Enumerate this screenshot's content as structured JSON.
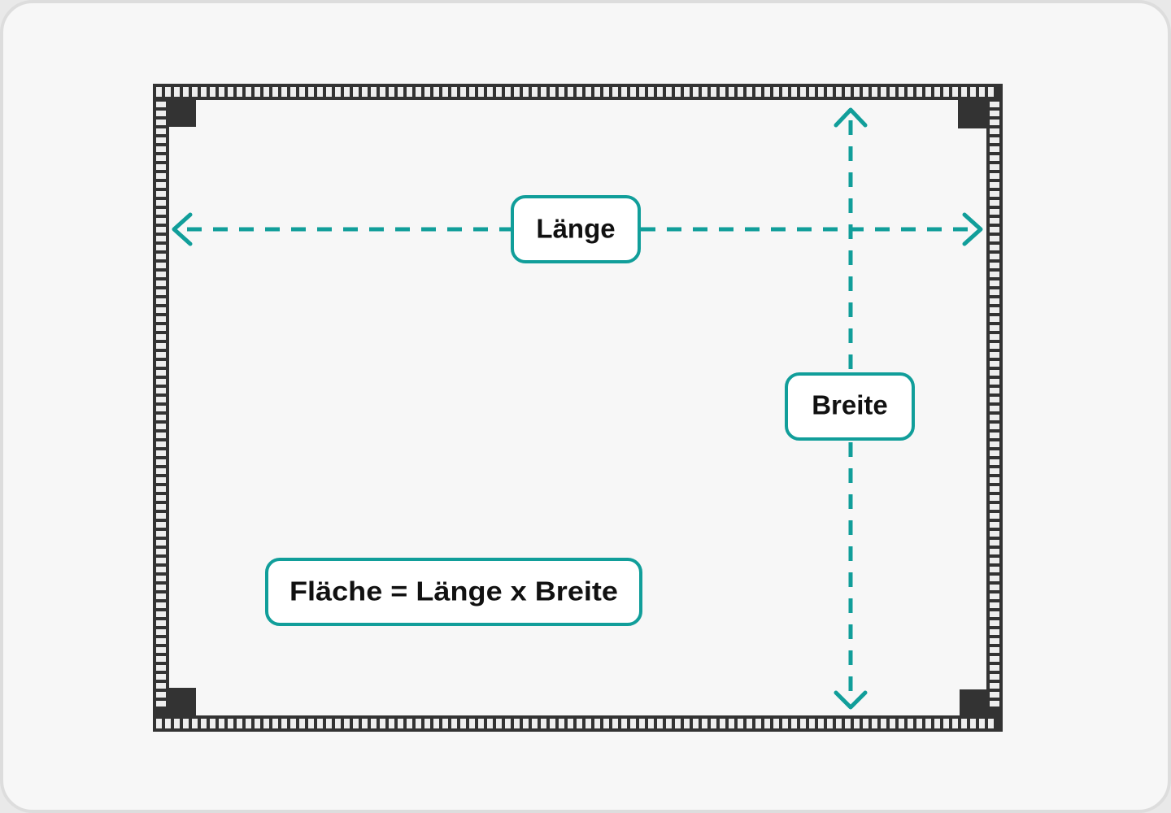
{
  "diagram": {
    "length_label": "Länge",
    "width_label": "Breite",
    "formula": "Fläche = Länge x Breite"
  },
  "colors": {
    "accent": "#119e9a",
    "frame": "#333333",
    "frame_dots": "#eeeeee",
    "background": "#f7f7f7",
    "card_border": "#dddddd"
  }
}
